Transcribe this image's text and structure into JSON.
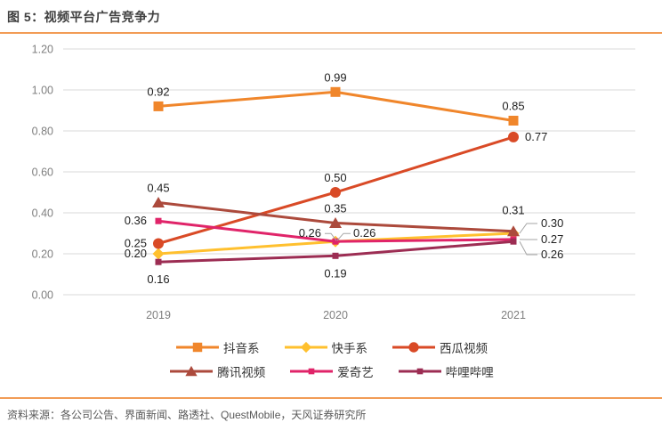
{
  "header": {
    "title": "图 5：视频平台广告竞争力"
  },
  "footer": {
    "source": "资料来源：各公司公告、界面新闻、路透社、QuestMobile，天风证券研究所"
  },
  "colors": {
    "rule_orange": "#F29C56",
    "grid": "#D9D9D9",
    "axis_text": "#7F7F7F",
    "data_label": "#1F1F1F",
    "leader": "#A6A6A6"
  },
  "chart_data": {
    "type": "line",
    "title": "图 5：视频平台广告竞争力",
    "x": [
      "2019",
      "2020",
      "2021"
    ],
    "xlabel": "",
    "ylabel": "",
    "ylim": [
      0.0,
      1.2
    ],
    "yticks": [
      "0.00",
      "0.20",
      "0.40",
      "0.60",
      "0.80",
      "1.00",
      "1.20"
    ],
    "grid": true,
    "legend_position": "bottom",
    "series": [
      {
        "id": "douyin",
        "name": "抖音系",
        "color": "#F0862B",
        "marker": "square",
        "values": [
          0.92,
          0.99,
          0.85
        ],
        "label_pos": [
          "above",
          "above",
          "above"
        ]
      },
      {
        "id": "kuaishou",
        "name": "快手系",
        "color": "#FFC02E",
        "marker": "diamond",
        "values": [
          0.2,
          0.26,
          0.3
        ],
        "label_pos": [
          "left",
          "pair-right",
          "leader"
        ]
      },
      {
        "id": "xigua-video",
        "name": "西瓜视频",
        "color": "#D94A26",
        "marker": "circle",
        "values": [
          0.25,
          0.5,
          0.77
        ],
        "label_pos": [
          "left",
          "above",
          "right"
        ]
      },
      {
        "id": "tencent-video",
        "name": "腾讯视频",
        "color": "#AC4A3C",
        "marker": "triangle",
        "values": [
          0.45,
          0.35,
          0.31
        ],
        "label_pos": [
          "above",
          "above",
          "above2"
        ]
      },
      {
        "id": "iqiyi",
        "name": "爱奇艺",
        "color": "#E02469",
        "marker": "small-square",
        "values": [
          0.36,
          0.26,
          0.27
        ],
        "label_pos": [
          "left",
          "pair-left",
          "leader"
        ]
      },
      {
        "id": "bilibili",
        "name": "哔哩哔哩",
        "color": "#9C2D53",
        "marker": "small-square",
        "values": [
          0.16,
          0.19,
          0.26
        ],
        "label_pos": [
          "below",
          "below",
          "leader"
        ]
      }
    ]
  }
}
